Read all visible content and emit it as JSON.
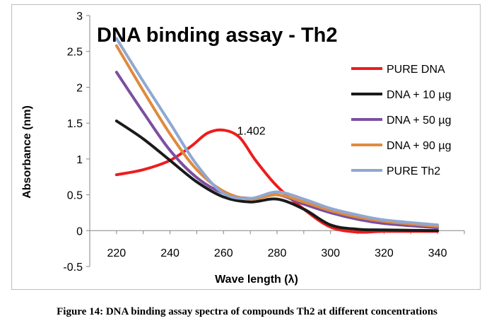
{
  "chart_data": {
    "type": "line",
    "title": "DNA binding assay - Th2",
    "xlabel": "Wave length (λ)",
    "ylabel": "Absorbance (nm)",
    "xlim": [
      210,
      350
    ],
    "ylim": [
      -0.5,
      3
    ],
    "xticks": [
      "220",
      "240",
      "260",
      "280",
      "300",
      "320",
      "340"
    ],
    "yticks": [
      "-0.5",
      "0",
      "0.5",
      "1",
      "1.5",
      "2",
      "2.5",
      "3"
    ],
    "grid": false,
    "legend_position": "right",
    "annotations": [
      {
        "text": "1.402",
        "x": 263,
        "y": 1.4
      }
    ],
    "series": [
      {
        "name": "PURE DNA",
        "color": "#ee1c1c",
        "x": [
          220,
          230,
          240,
          248,
          254,
          260,
          266,
          272,
          280,
          290,
          300,
          310,
          320,
          340
        ],
        "y": [
          0.78,
          0.85,
          0.98,
          1.18,
          1.36,
          1.402,
          1.3,
          0.98,
          0.62,
          0.3,
          0.05,
          -0.02,
          -0.01,
          -0.01
        ]
      },
      {
        "name": "DNA + 10 µg",
        "color": "#1a1a1a",
        "x": [
          220,
          230,
          240,
          250,
          260,
          270,
          280,
          290,
          300,
          310,
          320,
          340
        ],
        "y": [
          1.53,
          1.28,
          0.98,
          0.68,
          0.47,
          0.4,
          0.44,
          0.3,
          0.08,
          0.02,
          0.01,
          0.0
        ]
      },
      {
        "name": "DNA + 50 µg",
        "color": "#7b4fa0",
        "x": [
          220,
          230,
          240,
          250,
          260,
          270,
          280,
          290,
          300,
          310,
          320,
          340
        ],
        "y": [
          2.21,
          1.65,
          1.12,
          0.74,
          0.52,
          0.45,
          0.5,
          0.37,
          0.25,
          0.16,
          0.1,
          0.04
        ]
      },
      {
        "name": "DNA + 90 µg",
        "color": "#e08a3c",
        "x": [
          220,
          230,
          240,
          250,
          260,
          270,
          280,
          290,
          300,
          310,
          320,
          340
        ],
        "y": [
          2.58,
          1.95,
          1.35,
          0.85,
          0.55,
          0.44,
          0.5,
          0.4,
          0.28,
          0.19,
          0.13,
          0.06
        ]
      },
      {
        "name": "PURE Th2",
        "color": "#8fa8d2",
        "x": [
          220,
          230,
          240,
          250,
          260,
          270,
          280,
          290,
          300,
          310,
          320,
          340
        ],
        "y": [
          2.68,
          2.08,
          1.5,
          0.92,
          0.52,
          0.45,
          0.54,
          0.44,
          0.31,
          0.22,
          0.15,
          0.08
        ]
      }
    ]
  },
  "caption": "Figure 14: DNA binding assay spectra of compounds Th2 at different concentrations"
}
